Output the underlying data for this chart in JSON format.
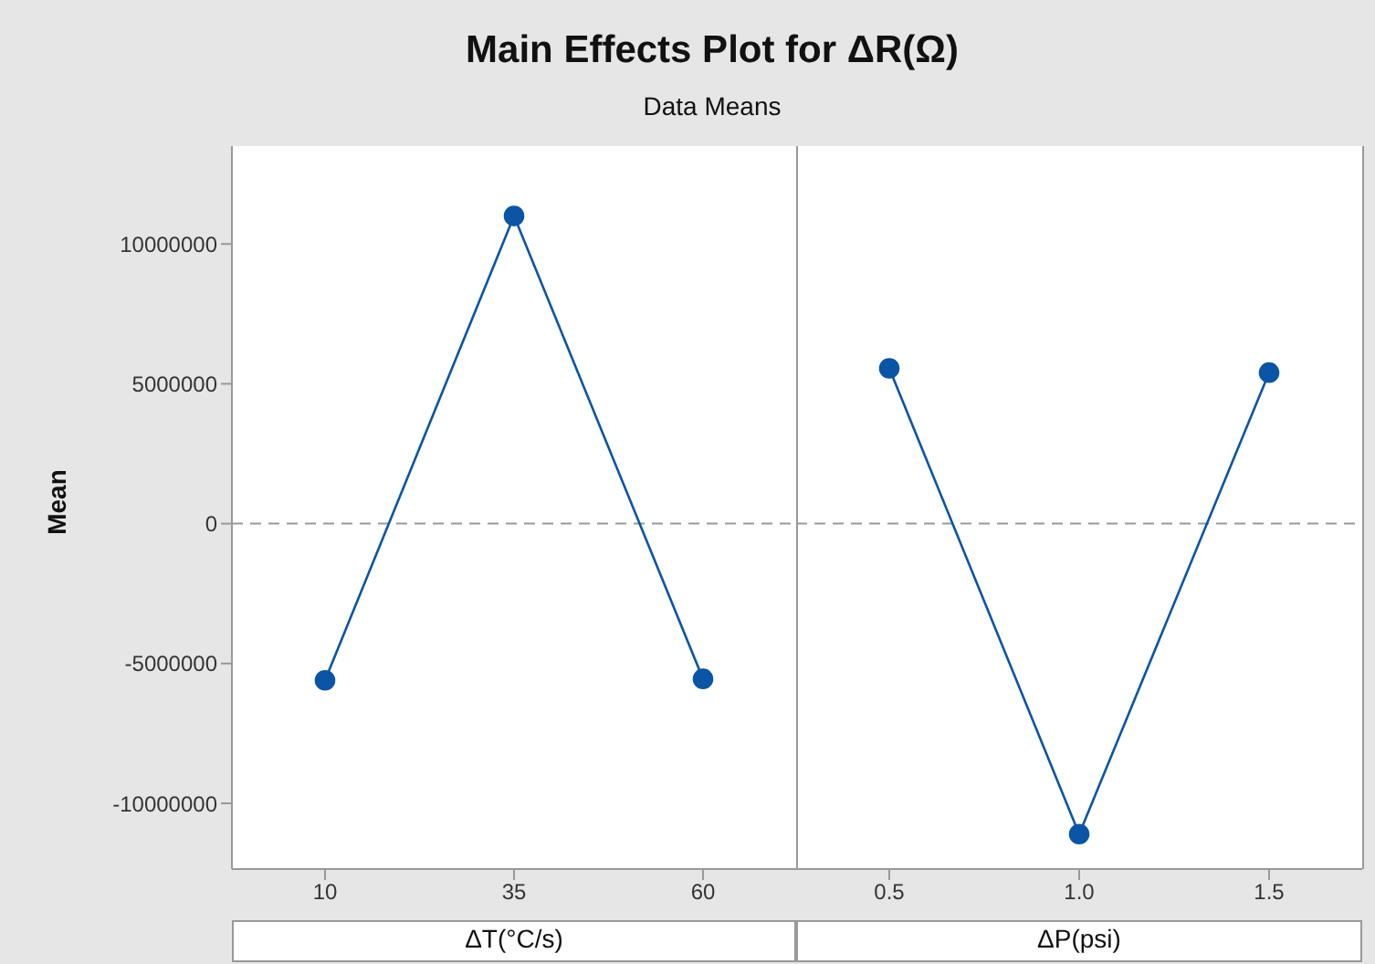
{
  "chart_data": [
    {
      "type": "line",
      "title": "Main Effects Plot for ΔR(Ω)",
      "subtitle": "Data Means",
      "ylabel": "Mean",
      "xlabel": "ΔT(°C/s)",
      "categories": [
        "10",
        "35",
        "60"
      ],
      "series": [
        {
          "color": "#0a55a5",
          "values": [
            -5600000,
            11000000,
            -5550000
          ]
        }
      ],
      "ylim": [
        -12350000,
        13500000
      ],
      "yticks": [
        -10000000,
        -5000000,
        0,
        5000000,
        10000000
      ],
      "marker": "circle",
      "grid": false,
      "ref_lines": [
        {
          "axis": "y",
          "value": 0,
          "color": "#999999",
          "line_style": "dashed"
        }
      ]
    },
    {
      "type": "line",
      "xlabel": "ΔP(psi)",
      "categories": [
        "0.5",
        "1.0",
        "1.5"
      ],
      "series": [
        {
          "color": "#0a55a5",
          "values": [
            5550000,
            -11100000,
            5400000
          ]
        }
      ],
      "ylim": [
        -12350000,
        13500000
      ],
      "tick_labels": "x",
      "marker": "circle",
      "grid": false,
      "ref_lines": [
        {
          "axis": "y",
          "value": 0,
          "color": "#999999",
          "line_style": "dashed"
        }
      ]
    }
  ]
}
